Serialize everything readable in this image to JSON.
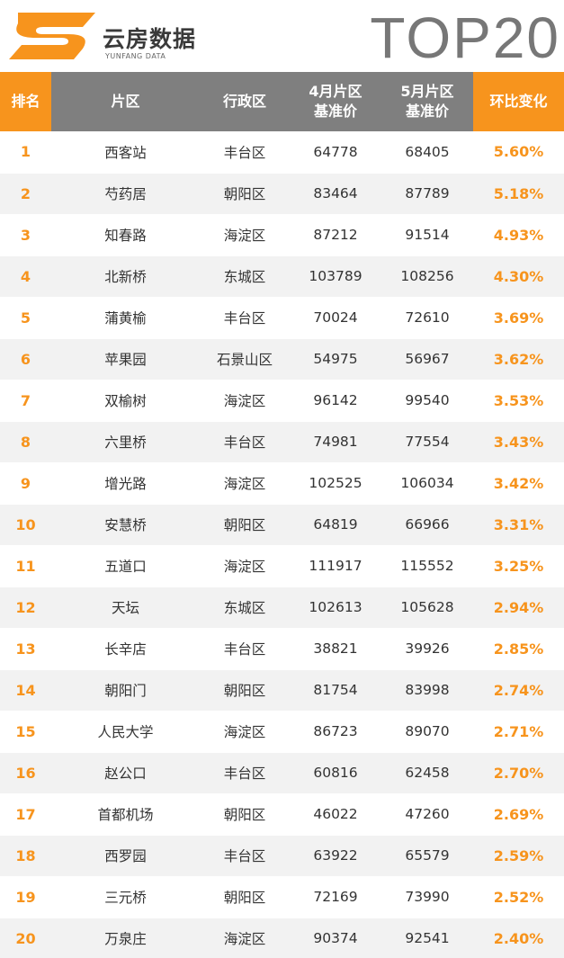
{
  "brand": {
    "name_cn": "云房数据",
    "name_en": "YUNFANG DATA",
    "title": "TOP20"
  },
  "colors": {
    "accent": "#f7941d",
    "header_gray": "#7f7f7f",
    "row_alt": "#f2f2f2"
  },
  "table": {
    "headers": {
      "rank": "排名",
      "area": "片区",
      "district": "行政区",
      "apr_line1": "4月片区",
      "apr_line2": "基准价",
      "may_line1": "5月片区",
      "may_line2": "基准价",
      "change": "环比变化"
    },
    "rows": [
      {
        "rank": "1",
        "area": "西客站",
        "district": "丰台区",
        "apr": "64778",
        "may": "68405",
        "change": "5.60%"
      },
      {
        "rank": "2",
        "area": "芍药居",
        "district": "朝阳区",
        "apr": "83464",
        "may": "87789",
        "change": "5.18%"
      },
      {
        "rank": "3",
        "area": "知春路",
        "district": "海淀区",
        "apr": "87212",
        "may": "91514",
        "change": "4.93%"
      },
      {
        "rank": "4",
        "area": "北新桥",
        "district": "东城区",
        "apr": "103789",
        "may": "108256",
        "change": "4.30%"
      },
      {
        "rank": "5",
        "area": "蒲黄榆",
        "district": "丰台区",
        "apr": "70024",
        "may": "72610",
        "change": "3.69%"
      },
      {
        "rank": "6",
        "area": "苹果园",
        "district": "石景山区",
        "apr": "54975",
        "may": "56967",
        "change": "3.62%"
      },
      {
        "rank": "7",
        "area": "双榆树",
        "district": "海淀区",
        "apr": "96142",
        "may": "99540",
        "change": "3.53%"
      },
      {
        "rank": "8",
        "area": "六里桥",
        "district": "丰台区",
        "apr": "74981",
        "may": "77554",
        "change": "3.43%"
      },
      {
        "rank": "9",
        "area": "增光路",
        "district": "海淀区",
        "apr": "102525",
        "may": "106034",
        "change": "3.42%"
      },
      {
        "rank": "10",
        "area": "安慧桥",
        "district": "朝阳区",
        "apr": "64819",
        "may": "66966",
        "change": "3.31%"
      },
      {
        "rank": "11",
        "area": "五道口",
        "district": "海淀区",
        "apr": "111917",
        "may": "115552",
        "change": "3.25%"
      },
      {
        "rank": "12",
        "area": "天坛",
        "district": "东城区",
        "apr": "102613",
        "may": "105628",
        "change": "2.94%"
      },
      {
        "rank": "13",
        "area": "长辛店",
        "district": "丰台区",
        "apr": "38821",
        "may": "39926",
        "change": "2.85%"
      },
      {
        "rank": "14",
        "area": "朝阳门",
        "district": "朝阳区",
        "apr": "81754",
        "may": "83998",
        "change": "2.74%"
      },
      {
        "rank": "15",
        "area": "人民大学",
        "district": "海淀区",
        "apr": "86723",
        "may": "89070",
        "change": "2.71%"
      },
      {
        "rank": "16",
        "area": "赵公口",
        "district": "丰台区",
        "apr": "60816",
        "may": "62458",
        "change": "2.70%"
      },
      {
        "rank": "17",
        "area": "首都机场",
        "district": "朝阳区",
        "apr": "46022",
        "may": "47260",
        "change": "2.69%"
      },
      {
        "rank": "18",
        "area": "西罗园",
        "district": "丰台区",
        "apr": "63922",
        "may": "65579",
        "change": "2.59%"
      },
      {
        "rank": "19",
        "area": "三元桥",
        "district": "朝阳区",
        "apr": "72169",
        "may": "73990",
        "change": "2.52%"
      },
      {
        "rank": "20",
        "area": "万泉庄",
        "district": "海淀区",
        "apr": "90374",
        "may": "92541",
        "change": "2.40%"
      }
    ]
  }
}
